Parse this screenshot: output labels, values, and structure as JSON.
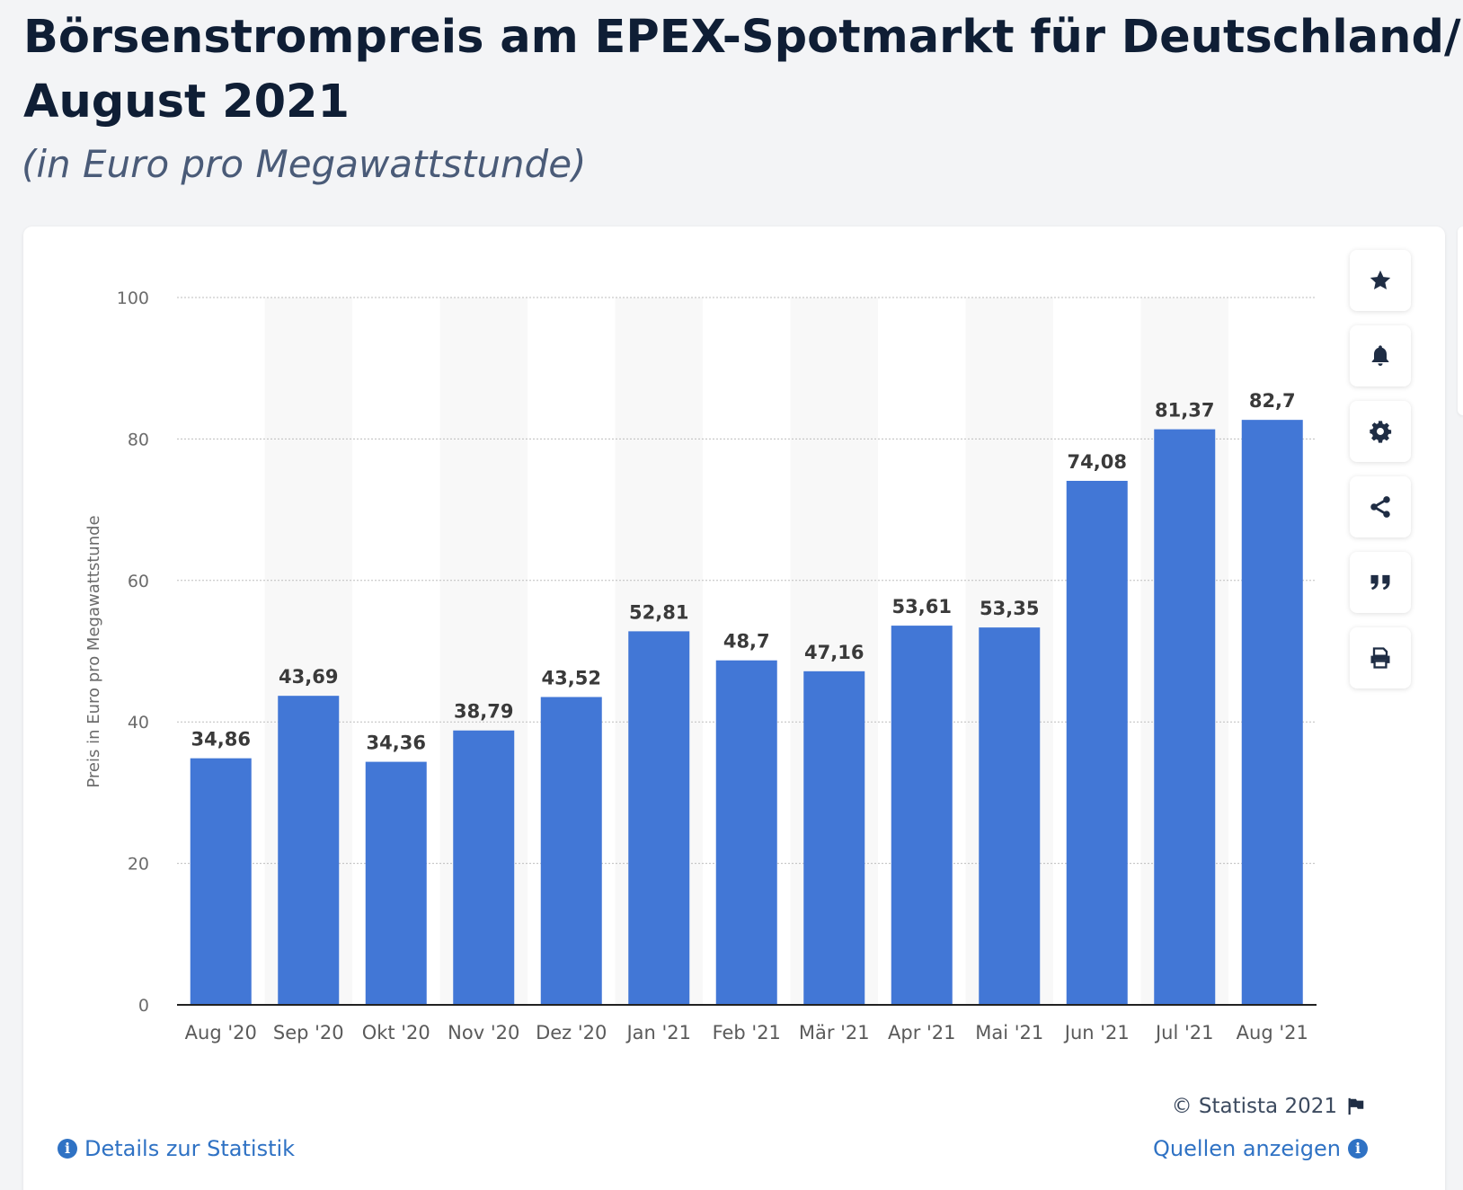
{
  "header": {
    "title_line1": "Börsenstrompreis am EPEX-Spotmarkt für Deutschland/Luxemburg",
    "title_line2": "August 2021",
    "subtitle": "(in Euro pro Megawattstunde)"
  },
  "toolbar": {
    "items": [
      {
        "icon": "star-icon"
      },
      {
        "icon": "bell-icon"
      },
      {
        "icon": "gear-icon"
      },
      {
        "icon": "share-icon"
      },
      {
        "icon": "quote-icon"
      },
      {
        "icon": "print-icon"
      }
    ]
  },
  "chart_data": {
    "type": "bar",
    "categories": [
      "Aug '20",
      "Sep '20",
      "Okt '20",
      "Nov '20",
      "Dez '20",
      "Jan '21",
      "Feb '21",
      "Mär '21",
      "Apr '21",
      "Mai '21",
      "Jun '21",
      "Jul '21",
      "Aug '21"
    ],
    "values": [
      34.86,
      43.69,
      34.36,
      38.79,
      43.52,
      52.81,
      48.7,
      47.16,
      53.61,
      53.35,
      74.08,
      81.37,
      82.7
    ],
    "value_labels": [
      "34,86",
      "43,69",
      "34,36",
      "38,79",
      "43,52",
      "52,81",
      "48,7",
      "47,16",
      "53,61",
      "53,35",
      "74,08",
      "81,37",
      "82,7"
    ],
    "ylabel": "Preis in Euro pro Megawattstunde",
    "xlabel": "",
    "ylim": [
      0,
      100
    ],
    "yticks": [
      0,
      20,
      40,
      60,
      80,
      100
    ],
    "grid": true,
    "bar_color": "#4277d6"
  },
  "footer": {
    "copyright": "© Statista 2021",
    "details_link": "Details zur Statistik",
    "sources_link": "Quellen anzeigen"
  },
  "colors": {
    "title": "#0f1e35",
    "subtitle": "#4a5b78",
    "link": "#2f72c4"
  }
}
